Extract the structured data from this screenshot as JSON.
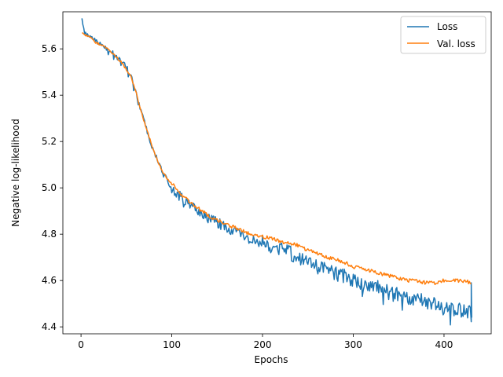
{
  "chart_data": {
    "type": "line",
    "title": "",
    "xlabel": "Epochs",
    "ylabel": "Negative log-likelihood",
    "xlim": [
      -20,
      452
    ],
    "ylim": [
      4.37,
      5.76
    ],
    "xticks": [
      0,
      100,
      200,
      300,
      400
    ],
    "yticks": [
      4.4,
      4.6,
      4.8,
      5.0,
      5.2,
      5.4,
      5.6
    ],
    "xtick_labels": [
      "0",
      "100",
      "200",
      "300",
      "400"
    ],
    "ytick_labels": [
      "4.4",
      "4.6",
      "4.8",
      "5.0",
      "5.2",
      "5.4",
      "5.6"
    ],
    "grid": false,
    "legend_position": "top-right",
    "series": [
      {
        "name": "Loss",
        "color": "#1f77b4",
        "noise": "high",
        "points": [
          [
            1,
            5.72
          ],
          [
            5,
            5.66
          ],
          [
            10,
            5.65
          ],
          [
            15,
            5.64
          ],
          [
            20,
            5.63
          ],
          [
            25,
            5.61
          ],
          [
            30,
            5.6
          ],
          [
            35,
            5.58
          ],
          [
            40,
            5.56
          ],
          [
            45,
            5.54
          ],
          [
            50,
            5.52
          ],
          [
            55,
            5.48
          ],
          [
            60,
            5.42
          ],
          [
            65,
            5.35
          ],
          [
            70,
            5.28
          ],
          [
            75,
            5.22
          ],
          [
            80,
            5.16
          ],
          [
            85,
            5.11
          ],
          [
            90,
            5.07
          ],
          [
            95,
            5.03
          ],
          [
            100,
            5.0
          ],
          [
            110,
            4.96
          ],
          [
            120,
            4.93
          ],
          [
            130,
            4.9
          ],
          [
            140,
            4.87
          ],
          [
            150,
            4.85
          ],
          [
            160,
            4.83
          ],
          [
            170,
            4.81
          ],
          [
            180,
            4.79
          ],
          [
            190,
            4.77
          ],
          [
            200,
            4.76
          ],
          [
            210,
            4.75
          ],
          [
            220,
            4.74
          ],
          [
            230,
            4.72
          ],
          [
            240,
            4.7
          ],
          [
            250,
            4.68
          ],
          [
            260,
            4.66
          ],
          [
            270,
            4.65
          ],
          [
            280,
            4.63
          ],
          [
            290,
            4.62
          ],
          [
            300,
            4.6
          ],
          [
            310,
            4.59
          ],
          [
            320,
            4.58
          ],
          [
            330,
            4.57
          ],
          [
            340,
            4.55
          ],
          [
            350,
            4.54
          ],
          [
            360,
            4.53
          ],
          [
            370,
            4.52
          ],
          [
            380,
            4.51
          ],
          [
            390,
            4.5
          ],
          [
            400,
            4.49
          ],
          [
            410,
            4.48
          ],
          [
            420,
            4.47
          ],
          [
            428,
            4.46
          ],
          [
            430,
            4.45
          ]
        ]
      },
      {
        "name": "Val. loss",
        "color": "#ff7f0e",
        "noise": "low",
        "points": [
          [
            1,
            5.67
          ],
          [
            5,
            5.66
          ],
          [
            10,
            5.65
          ],
          [
            15,
            5.63
          ],
          [
            20,
            5.62
          ],
          [
            25,
            5.61
          ],
          [
            30,
            5.6
          ],
          [
            35,
            5.58
          ],
          [
            40,
            5.56
          ],
          [
            45,
            5.54
          ],
          [
            50,
            5.51
          ],
          [
            55,
            5.48
          ],
          [
            60,
            5.42
          ],
          [
            65,
            5.35
          ],
          [
            70,
            5.28
          ],
          [
            75,
            5.22
          ],
          [
            80,
            5.16
          ],
          [
            85,
            5.11
          ],
          [
            90,
            5.07
          ],
          [
            95,
            5.04
          ],
          [
            100,
            5.02
          ],
          [
            110,
            4.97
          ],
          [
            120,
            4.94
          ],
          [
            130,
            4.91
          ],
          [
            140,
            4.88
          ],
          [
            150,
            4.86
          ],
          [
            160,
            4.84
          ],
          [
            170,
            4.83
          ],
          [
            180,
            4.81
          ],
          [
            190,
            4.8
          ],
          [
            200,
            4.79
          ],
          [
            210,
            4.78
          ],
          [
            220,
            4.77
          ],
          [
            230,
            4.76
          ],
          [
            240,
            4.75
          ],
          [
            250,
            4.73
          ],
          [
            260,
            4.72
          ],
          [
            270,
            4.7
          ],
          [
            280,
            4.69
          ],
          [
            290,
            4.68
          ],
          [
            300,
            4.66
          ],
          [
            310,
            4.65
          ],
          [
            320,
            4.64
          ],
          [
            330,
            4.63
          ],
          [
            340,
            4.62
          ],
          [
            350,
            4.61
          ],
          [
            360,
            4.6
          ],
          [
            370,
            4.6
          ],
          [
            380,
            4.59
          ],
          [
            390,
            4.59
          ],
          [
            400,
            4.6
          ],
          [
            410,
            4.6
          ],
          [
            420,
            4.6
          ],
          [
            430,
            4.59
          ]
        ]
      }
    ]
  }
}
